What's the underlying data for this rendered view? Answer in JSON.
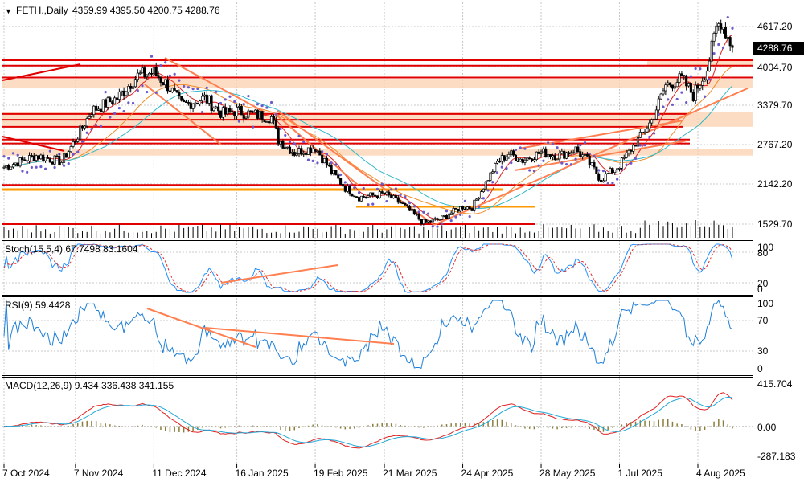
{
  "colors": {
    "background": "#ffffff",
    "grid": "#c8c8c8",
    "candle": "#000000",
    "ma_red": "#e02020",
    "ma_orange": "#f28c28",
    "ma_teal": "#30b8c8",
    "psar": "#6a5acd",
    "level_red": "#e00000",
    "level_orange": "#ff9900",
    "zone": "#fbd2b0",
    "trend": "#ff7f50",
    "stoch_main": "#1e90ff",
    "stoch_signal": "#e03030",
    "rsi": "#1e7fd8",
    "macd_hist": "#8b7d3c",
    "macd_line": "#e02020",
    "macd_signal": "#20a8d8"
  },
  "panels": {
    "main": {
      "title_icon": "triangle-down-icon",
      "symbol": "FETH.,Daily",
      "ohlc": "4359.99 4395.50 4200.75 4288.76",
      "price_ticks": [
        "4617.20",
        "4004.70",
        "3379.70",
        "2767.20",
        "2142.20",
        "1529.70"
      ],
      "current_price": "4288.76"
    },
    "stoch": {
      "title": "Stoch(15,5,4) 67.7498 83.1604",
      "ticks": [
        "100",
        "80",
        "20",
        "0"
      ]
    },
    "rsi": {
      "title": "RSI(9) 59.4428",
      "ticks": [
        "100",
        "70",
        "30",
        "0"
      ]
    },
    "macd": {
      "title": "MACD(12,26,9) 9.434 336.438 341.155",
      "ticks": [
        "415.704",
        "0.00",
        "-287.183"
      ]
    }
  },
  "x_labels": [
    "7 Oct 2024",
    "7 Nov 2024",
    "11 Dec 2024",
    "16 Jan 2025",
    "19 Feb 2025",
    "21 Mar 2025",
    "24 Apr 2025",
    "28 May 2025",
    "1 Jul 2025",
    "4 Aug 2025"
  ],
  "chart_data": {
    "type": "candlestick",
    "instrument": "FETH.",
    "timeframe": "Daily",
    "ohlc_last": {
      "open": 4359.99,
      "high": 4395.5,
      "low": 4200.75,
      "close": 4288.76
    },
    "x_start": "7 Oct 2024",
    "close_anchors": [
      [
        "7 Oct 2024",
        2420
      ],
      [
        "21 Oct 2024",
        2600
      ],
      [
        "1 Nov 2024",
        2500
      ],
      [
        "7 Nov 2024",
        2850
      ],
      [
        "14 Nov 2024",
        3300
      ],
      [
        "25 Nov 2024",
        3500
      ],
      [
        "4 Dec 2024",
        3850
      ],
      [
        "11 Dec 2024",
        3900
      ],
      [
        "17 Dec 2024",
        3700
      ],
      [
        "23 Dec 2024",
        3380
      ],
      [
        "2 Jan 2025",
        3500
      ],
      [
        "10 Jan 2025",
        3250
      ],
      [
        "16 Jan 2025",
        3300
      ],
      [
        "22 Jan 2025",
        3250
      ],
      [
        "31 Jan 2025",
        3200
      ],
      [
        "3 Feb 2025",
        2850
      ],
      [
        "10 Feb 2025",
        2650
      ],
      [
        "19 Feb 2025",
        2730
      ],
      [
        "26 Feb 2025",
        2350
      ],
      [
        "4 Mar 2025",
        2100
      ],
      [
        "10 Mar 2025",
        1950
      ],
      [
        "21 Mar 2025",
        2000
      ],
      [
        "28 Mar 2025",
        1860
      ],
      [
        "7 Apr 2025",
        1550
      ],
      [
        "15 Apr 2025",
        1620
      ],
      [
        "21 Apr 2025",
        1750
      ],
      [
        "24 Apr 2025",
        1800
      ],
      [
        "28 Apr 2025",
        1790
      ],
      [
        "9 May 2025",
        2500
      ],
      [
        "14 May 2025",
        2630
      ],
      [
        "20 May 2025",
        2530
      ],
      [
        "28 May 2025",
        2650
      ],
      [
        "5 Jun 2025",
        2600
      ],
      [
        "12 Jun 2025",
        2700
      ],
      [
        "17 Jun 2025",
        2520
      ],
      [
        "23 Jun 2025",
        2230
      ],
      [
        "1 Jul 2025",
        2450
      ],
      [
        "10 Jul 2025",
        2900
      ],
      [
        "15 Jul 2025",
        3150
      ],
      [
        "21 Jul 2025",
        3700
      ],
      [
        "28 Jul 2025",
        3800
      ],
      [
        "2 Aug 2025",
        3550
      ],
      [
        "8 Aug 2025",
        3950
      ],
      [
        "12 Aug 2025",
        4600
      ],
      [
        "14 Aug 2025",
        4700
      ],
      [
        "19 Aug 2025",
        4288.76
      ]
    ],
    "horizontal_levels_red": [
      4090,
      4004.7,
      3820,
      3250,
      3160,
      3050,
      2850,
      2790,
      2142.2,
      1529.7
    ],
    "horizontal_levels_orange": [
      2070,
      1800
    ],
    "shaded_zones": [
      [
        3650,
        3800
      ],
      [
        3050,
        3280
      ],
      [
        2600,
        2700
      ],
      [
        4004.7,
        4100
      ]
    ],
    "y_range": [
      1400,
      4800
    ],
    "stoch_range": [
      0,
      100
    ],
    "rsi_range": [
      0,
      100
    ],
    "macd_range": [
      -287.183,
      415.704
    ],
    "macd_last": {
      "histogram": 9.434,
      "macd": 336.438,
      "signal": 341.155
    },
    "rsi_last": 59.4428,
    "stoch_last": {
      "k": 67.7498,
      "d": 83.1604
    }
  }
}
